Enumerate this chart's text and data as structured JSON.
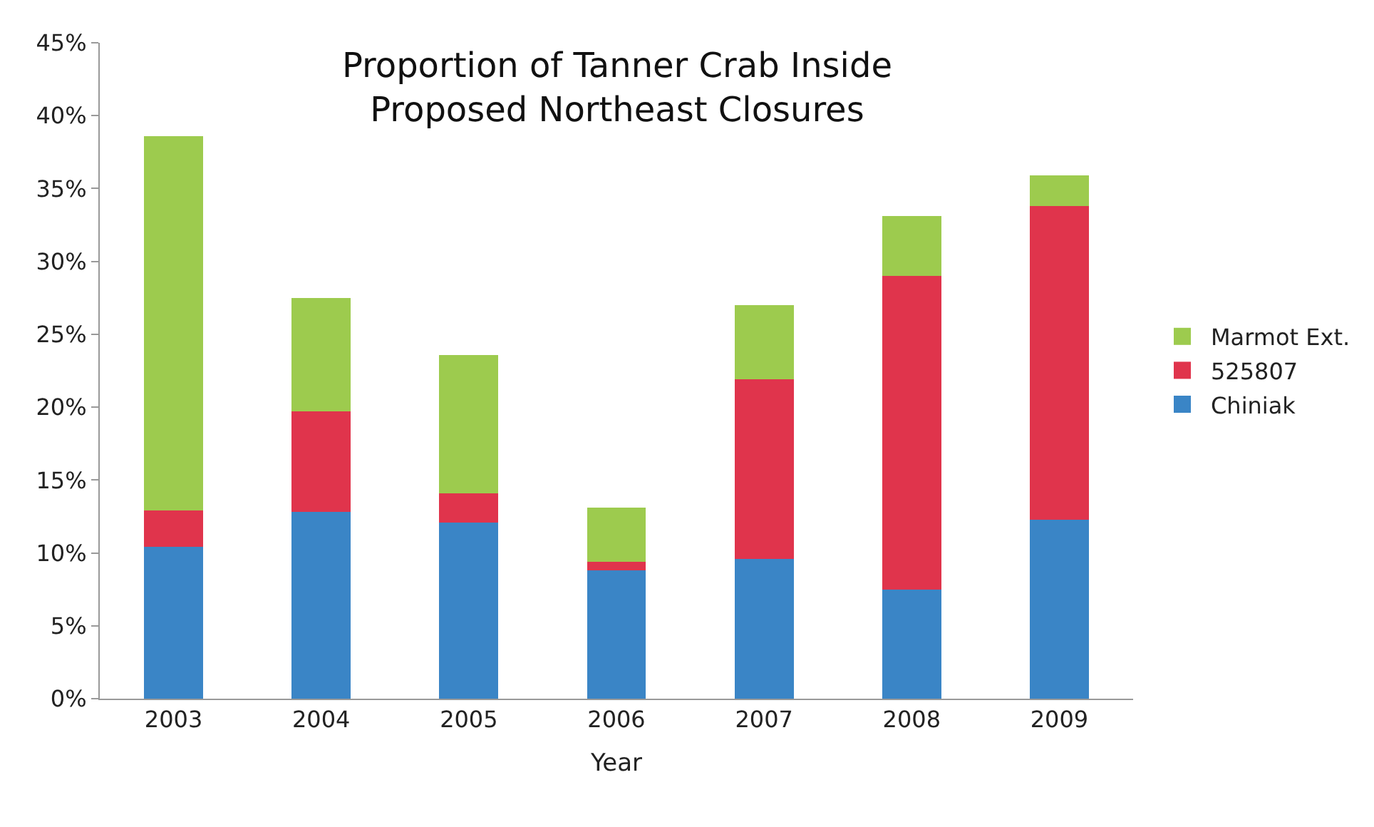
{
  "chart_data": {
    "type": "bar",
    "title": "Proportion of Tanner Crab Inside\nProposed Northeast Closures",
    "xlabel": "Year",
    "categories": [
      "2003",
      "2004",
      "2005",
      "2006",
      "2007",
      "2008",
      "2009"
    ],
    "stacked": true,
    "series": [
      {
        "name": "Chiniak",
        "color": "#3a85c6",
        "values": [
          10.4,
          12.8,
          12.1,
          8.8,
          9.6,
          7.5,
          12.3
        ]
      },
      {
        "name": "525807",
        "color": "#e0344c",
        "values": [
          2.5,
          6.9,
          2.0,
          0.6,
          12.3,
          21.5,
          21.5
        ]
      },
      {
        "name": "Marmot Ext.",
        "color": "#9dcb4e",
        "values": [
          25.7,
          7.8,
          9.5,
          3.7,
          5.1,
          4.1,
          2.1
        ]
      }
    ],
    "ylim": [
      0,
      45
    ],
    "yticks": [
      {
        "value": 0,
        "label": "0%"
      },
      {
        "value": 5,
        "label": "5%"
      },
      {
        "value": 10,
        "label": "10%"
      },
      {
        "value": 15,
        "label": "15%"
      },
      {
        "value": 20,
        "label": "20%"
      },
      {
        "value": 25,
        "label": "25%"
      },
      {
        "value": 30,
        "label": "30%"
      },
      {
        "value": 35,
        "label": "35%"
      },
      {
        "value": 40,
        "label": "40%"
      },
      {
        "value": 45,
        "label": "45%"
      }
    ],
    "legend": "right"
  }
}
